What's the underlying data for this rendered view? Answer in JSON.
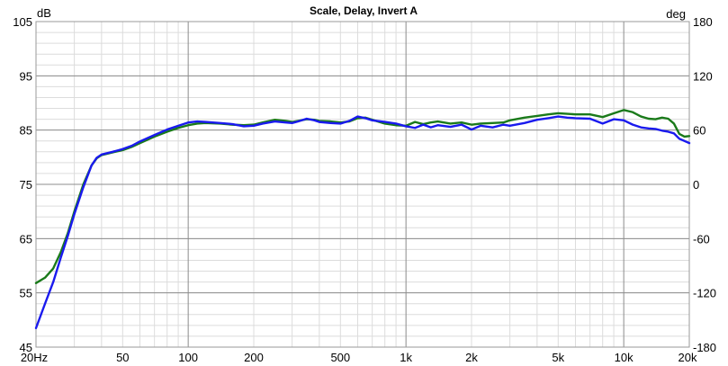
{
  "chart_data": {
    "type": "line",
    "title": "Scale, Delay, Invert A",
    "xscale": "log",
    "xlim": [
      20,
      20000
    ],
    "ylim": [
      45,
      105
    ],
    "y2lim": [
      -180,
      180
    ],
    "yunit": "dB",
    "y2unit": "deg",
    "grid": true,
    "legend": "none",
    "x_ticks": [
      {
        "value": 20,
        "label": "20Hz"
      },
      {
        "value": 50,
        "label": "50"
      },
      {
        "value": 100,
        "label": "100"
      },
      {
        "value": 200,
        "label": "200"
      },
      {
        "value": 500,
        "label": "500"
      },
      {
        "value": 1000,
        "label": "1k"
      },
      {
        "value": 2000,
        "label": "2k"
      },
      {
        "value": 5000,
        "label": "5k"
      },
      {
        "value": 10000,
        "label": "10k"
      },
      {
        "value": 20000,
        "label": "20k"
      }
    ],
    "y_ticks": [
      {
        "value": 105,
        "label": "105"
      },
      {
        "value": 95,
        "label": "95"
      },
      {
        "value": 85,
        "label": "85"
      },
      {
        "value": 75,
        "label": "75"
      },
      {
        "value": 65,
        "label": "65"
      },
      {
        "value": 55,
        "label": "55"
      },
      {
        "value": 45,
        "label": "45"
      }
    ],
    "y2_ticks": [
      {
        "value": 180,
        "label": "180"
      },
      {
        "value": 120,
        "label": "120"
      },
      {
        "value": 60,
        "label": "60"
      },
      {
        "value": 0,
        "label": "0"
      },
      {
        "value": -60,
        "label": "-60"
      },
      {
        "value": -120,
        "label": "-120"
      },
      {
        "value": -180,
        "label": "-180"
      }
    ],
    "series": [
      {
        "color": "#1a7a1a",
        "points": [
          [
            20,
            56.8
          ],
          [
            22,
            57.8
          ],
          [
            24,
            59.5
          ],
          [
            26,
            62.5
          ],
          [
            28,
            66.0
          ],
          [
            30,
            70.0
          ],
          [
            33,
            75.0
          ],
          [
            36,
            78.5
          ],
          [
            38,
            79.8
          ],
          [
            40,
            80.4
          ],
          [
            45,
            80.9
          ],
          [
            50,
            81.3
          ],
          [
            55,
            81.9
          ],
          [
            60,
            82.6
          ],
          [
            70,
            83.8
          ],
          [
            80,
            84.7
          ],
          [
            90,
            85.4
          ],
          [
            100,
            85.9
          ],
          [
            110,
            86.2
          ],
          [
            120,
            86.3
          ],
          [
            140,
            86.2
          ],
          [
            160,
            86.0
          ],
          [
            180,
            85.9
          ],
          [
            200,
            86.0
          ],
          [
            220,
            86.4
          ],
          [
            250,
            86.9
          ],
          [
            280,
            86.7
          ],
          [
            300,
            86.5
          ],
          [
            320,
            86.7
          ],
          [
            350,
            87.0
          ],
          [
            380,
            86.9
          ],
          [
            400,
            86.7
          ],
          [
            450,
            86.6
          ],
          [
            500,
            86.4
          ],
          [
            550,
            86.6
          ],
          [
            600,
            87.2
          ],
          [
            650,
            87.3
          ],
          [
            700,
            86.9
          ],
          [
            800,
            86.2
          ],
          [
            900,
            85.9
          ],
          [
            1000,
            85.8
          ],
          [
            1100,
            86.5
          ],
          [
            1200,
            86.1
          ],
          [
            1300,
            86.4
          ],
          [
            1400,
            86.6
          ],
          [
            1600,
            86.2
          ],
          [
            1800,
            86.4
          ],
          [
            2000,
            86.0
          ],
          [
            2200,
            86.2
          ],
          [
            2500,
            86.3
          ],
          [
            2800,
            86.4
          ],
          [
            3000,
            86.8
          ],
          [
            3500,
            87.3
          ],
          [
            4000,
            87.6
          ],
          [
            4500,
            87.9
          ],
          [
            5000,
            88.1
          ],
          [
            5500,
            88.0
          ],
          [
            6000,
            87.9
          ],
          [
            7000,
            87.9
          ],
          [
            8000,
            87.4
          ],
          [
            9000,
            88.1
          ],
          [
            10000,
            88.7
          ],
          [
            11000,
            88.3
          ],
          [
            12000,
            87.5
          ],
          [
            13000,
            87.1
          ],
          [
            14000,
            87.0
          ],
          [
            15000,
            87.3
          ],
          [
            16000,
            87.1
          ],
          [
            17000,
            86.2
          ],
          [
            18000,
            84.3
          ],
          [
            19000,
            83.8
          ],
          [
            20000,
            83.9
          ]
        ]
      },
      {
        "color": "#1a1aee",
        "points": [
          [
            20,
            48.5
          ],
          [
            22,
            53.0
          ],
          [
            24,
            57.0
          ],
          [
            26,
            61.5
          ],
          [
            28,
            65.5
          ],
          [
            30,
            69.5
          ],
          [
            33,
            74.5
          ],
          [
            36,
            78.5
          ],
          [
            38,
            79.9
          ],
          [
            40,
            80.5
          ],
          [
            45,
            81.0
          ],
          [
            50,
            81.5
          ],
          [
            55,
            82.1
          ],
          [
            60,
            82.9
          ],
          [
            70,
            84.1
          ],
          [
            80,
            85.1
          ],
          [
            90,
            85.8
          ],
          [
            100,
            86.4
          ],
          [
            110,
            86.6
          ],
          [
            120,
            86.5
          ],
          [
            140,
            86.3
          ],
          [
            160,
            86.1
          ],
          [
            180,
            85.7
          ],
          [
            200,
            85.8
          ],
          [
            220,
            86.2
          ],
          [
            250,
            86.6
          ],
          [
            280,
            86.4
          ],
          [
            300,
            86.3
          ],
          [
            320,
            86.6
          ],
          [
            350,
            87.1
          ],
          [
            380,
            86.8
          ],
          [
            400,
            86.5
          ],
          [
            450,
            86.3
          ],
          [
            500,
            86.2
          ],
          [
            550,
            86.7
          ],
          [
            600,
            87.5
          ],
          [
            650,
            87.2
          ],
          [
            700,
            86.8
          ],
          [
            800,
            86.5
          ],
          [
            900,
            86.2
          ],
          [
            1000,
            85.7
          ],
          [
            1100,
            85.4
          ],
          [
            1200,
            86.0
          ],
          [
            1300,
            85.5
          ],
          [
            1400,
            85.9
          ],
          [
            1600,
            85.6
          ],
          [
            1800,
            86.0
          ],
          [
            2000,
            85.1
          ],
          [
            2200,
            85.8
          ],
          [
            2500,
            85.5
          ],
          [
            2800,
            86.0
          ],
          [
            3000,
            85.8
          ],
          [
            3500,
            86.3
          ],
          [
            4000,
            86.9
          ],
          [
            4500,
            87.2
          ],
          [
            5000,
            87.5
          ],
          [
            5500,
            87.3
          ],
          [
            6000,
            87.2
          ],
          [
            7000,
            87.1
          ],
          [
            8000,
            86.2
          ],
          [
            9000,
            87.0
          ],
          [
            10000,
            86.8
          ],
          [
            11000,
            86.0
          ],
          [
            12000,
            85.5
          ],
          [
            13000,
            85.3
          ],
          [
            14000,
            85.2
          ],
          [
            15000,
            84.9
          ],
          [
            16000,
            84.7
          ],
          [
            17000,
            84.4
          ],
          [
            18000,
            83.4
          ],
          [
            19000,
            83.0
          ],
          [
            20000,
            82.6
          ]
        ]
      }
    ]
  }
}
